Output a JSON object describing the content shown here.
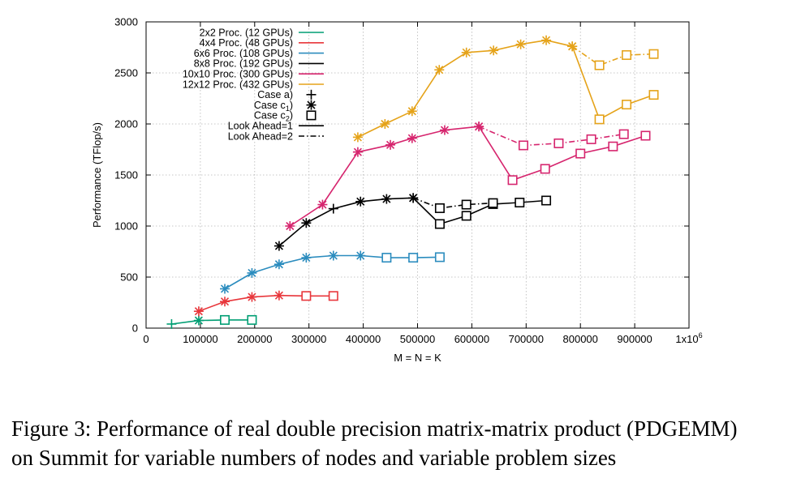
{
  "chart_data": {
    "type": "line",
    "ylabel": "Performance (TFlop/s)",
    "xlabel": "M = N = K",
    "xlim": [
      0,
      1000000
    ],
    "ylim": [
      0,
      3000
    ],
    "xticks": [
      0,
      100000,
      200000,
      300000,
      400000,
      500000,
      600000,
      700000,
      800000,
      900000
    ],
    "xtick_labels": [
      "0",
      "100000",
      "200000",
      "300000",
      "400000",
      "500000",
      "600000",
      "700000",
      "800000",
      "900000"
    ],
    "x_multiplier_label": "1x10",
    "x_multiplier_exp": "6",
    "yticks": [
      0,
      500,
      1000,
      1500,
      2000,
      2500,
      3000
    ],
    "ytick_labels": [
      "0",
      "500",
      "1000",
      "1500",
      "2000",
      "2500",
      "3000"
    ],
    "grid": true,
    "legend_position": "top-left",
    "legend": [
      {
        "label": "2x2 Proc. (12 GPUs)",
        "kind": "line",
        "color": "#009e73"
      },
      {
        "label": "4x4 Proc. (48 GPUs)",
        "kind": "line",
        "color": "#e8363b"
      },
      {
        "label": "6x6 Proc. (108 GPUs)",
        "kind": "line",
        "color": "#2b8cbe"
      },
      {
        "label": "8x8 Proc. (192 GPUs)",
        "kind": "line",
        "color": "#000000"
      },
      {
        "label": "10x10 Proc. (300 GPUs)",
        "kind": "line",
        "color": "#d6256e"
      },
      {
        "label": "12x12 Proc. (432 GPUs)",
        "kind": "line",
        "color": "#e5a31a"
      },
      {
        "label": "Case a)",
        "kind": "marker",
        "marker": "plus",
        "color": "#000000"
      },
      {
        "label": "Case c1)",
        "kind": "marker",
        "marker": "star",
        "color": "#000000",
        "text": "Case c",
        "sub": "1",
        "suffix": ")"
      },
      {
        "label": "Case c2)",
        "kind": "marker",
        "marker": "square",
        "color": "#000000",
        "text": "Case c",
        "sub": "2",
        "suffix": ")"
      },
      {
        "label": "Look Ahead=1",
        "kind": "line",
        "dash": "solid",
        "color": "#000000"
      },
      {
        "label": "Look Ahead=2",
        "kind": "line",
        "dash": "dashdot",
        "color": "#000000"
      }
    ],
    "series": [
      {
        "name": "2x2 LA1",
        "color": "#009e73",
        "dash": "solid",
        "points": [
          [
            47000,
            40,
            "plus"
          ],
          [
            97000,
            75,
            "star"
          ],
          [
            145000,
            80,
            "square"
          ],
          [
            195000,
            80,
            "square"
          ]
        ]
      },
      {
        "name": "4x4 LA1",
        "color": "#e8363b",
        "dash": "solid",
        "points": [
          [
            97000,
            165,
            "star"
          ],
          [
            145000,
            260,
            "star"
          ],
          [
            195000,
            305,
            "star"
          ],
          [
            245000,
            320,
            "star"
          ],
          [
            295000,
            315,
            "square"
          ],
          [
            345000,
            315,
            "square"
          ]
        ]
      },
      {
        "name": "6x6 LA1",
        "color": "#2b8cbe",
        "dash": "solid",
        "points": [
          [
            145000,
            385,
            "star"
          ],
          [
            195000,
            540,
            "star"
          ],
          [
            245000,
            625,
            "star"
          ],
          [
            295000,
            690,
            "star"
          ],
          [
            345000,
            710,
            "star"
          ],
          [
            395000,
            710,
            "star"
          ],
          [
            443000,
            690,
            "square"
          ],
          [
            492000,
            690,
            "square"
          ],
          [
            541000,
            695,
            "square"
          ]
        ]
      },
      {
        "name": "8x8 LA1",
        "color": "#000000",
        "dash": "solid",
        "points": [
          [
            245000,
            805,
            "star"
          ],
          [
            295000,
            1030,
            "star"
          ],
          [
            345000,
            1170,
            "plus"
          ],
          [
            395000,
            1240,
            "star"
          ],
          [
            443000,
            1265,
            "star"
          ],
          [
            492000,
            1275,
            "star"
          ],
          [
            541000,
            1020,
            "square"
          ],
          [
            590000,
            1100,
            "square"
          ],
          [
            639000,
            1215,
            "square"
          ],
          [
            688000,
            1230,
            "square"
          ],
          [
            737000,
            1250,
            "square"
          ]
        ]
      },
      {
        "name": "8x8 LA2",
        "color": "#000000",
        "dash": "dashdot",
        "points": [
          [
            492000,
            1275,
            "star"
          ],
          [
            541000,
            1175,
            "square"
          ],
          [
            590000,
            1210,
            "square"
          ],
          [
            639000,
            1225,
            "square"
          ]
        ]
      },
      {
        "name": "10x10 LA1",
        "color": "#d6256e",
        "dash": "solid",
        "points": [
          [
            265000,
            1000,
            "star"
          ],
          [
            325000,
            1210,
            "star"
          ],
          [
            390000,
            1725,
            "star"
          ],
          [
            450000,
            1795,
            "star"
          ],
          [
            490000,
            1860,
            "star"
          ],
          [
            550000,
            1940,
            "star"
          ],
          [
            613000,
            1975,
            "star"
          ],
          [
            675000,
            1450,
            "square"
          ],
          [
            735000,
            1560,
            "square"
          ],
          [
            800000,
            1710,
            "square"
          ],
          [
            860000,
            1780,
            "square"
          ],
          [
            920000,
            1885,
            "square"
          ]
        ]
      },
      {
        "name": "10x10 LA2",
        "color": "#d6256e",
        "dash": "dashdot",
        "points": [
          [
            613000,
            1975,
            "star"
          ],
          [
            695000,
            1790,
            "square"
          ],
          [
            760000,
            1810,
            "square"
          ],
          [
            820000,
            1850,
            "square"
          ],
          [
            880000,
            1900,
            "square"
          ]
        ]
      },
      {
        "name": "12x12 LA1",
        "color": "#e5a31a",
        "dash": "solid",
        "points": [
          [
            390000,
            1870,
            "star"
          ],
          [
            440000,
            2000,
            "star"
          ],
          [
            490000,
            2125,
            "star"
          ],
          [
            540000,
            2530,
            "star"
          ],
          [
            590000,
            2700,
            "star"
          ],
          [
            640000,
            2720,
            "star"
          ],
          [
            690000,
            2780,
            "star"
          ],
          [
            737000,
            2820,
            "star"
          ],
          [
            785000,
            2760,
            "star"
          ],
          [
            835000,
            2045,
            "square"
          ],
          [
            885000,
            2190,
            "square"
          ],
          [
            935000,
            2285,
            "square"
          ]
        ]
      },
      {
        "name": "12x12 LA2",
        "color": "#e5a31a",
        "dash": "dashdot",
        "points": [
          [
            785000,
            2760,
            "star"
          ],
          [
            835000,
            2575,
            "square"
          ],
          [
            885000,
            2675,
            "square"
          ],
          [
            935000,
            2685,
            "square"
          ]
        ]
      }
    ]
  },
  "caption": {
    "line1": "Figure 3: Performance of real double precision matrix-matrix product (PDGEMM)",
    "line2": "on Summit for variable numbers of nodes and variable problem sizes"
  }
}
